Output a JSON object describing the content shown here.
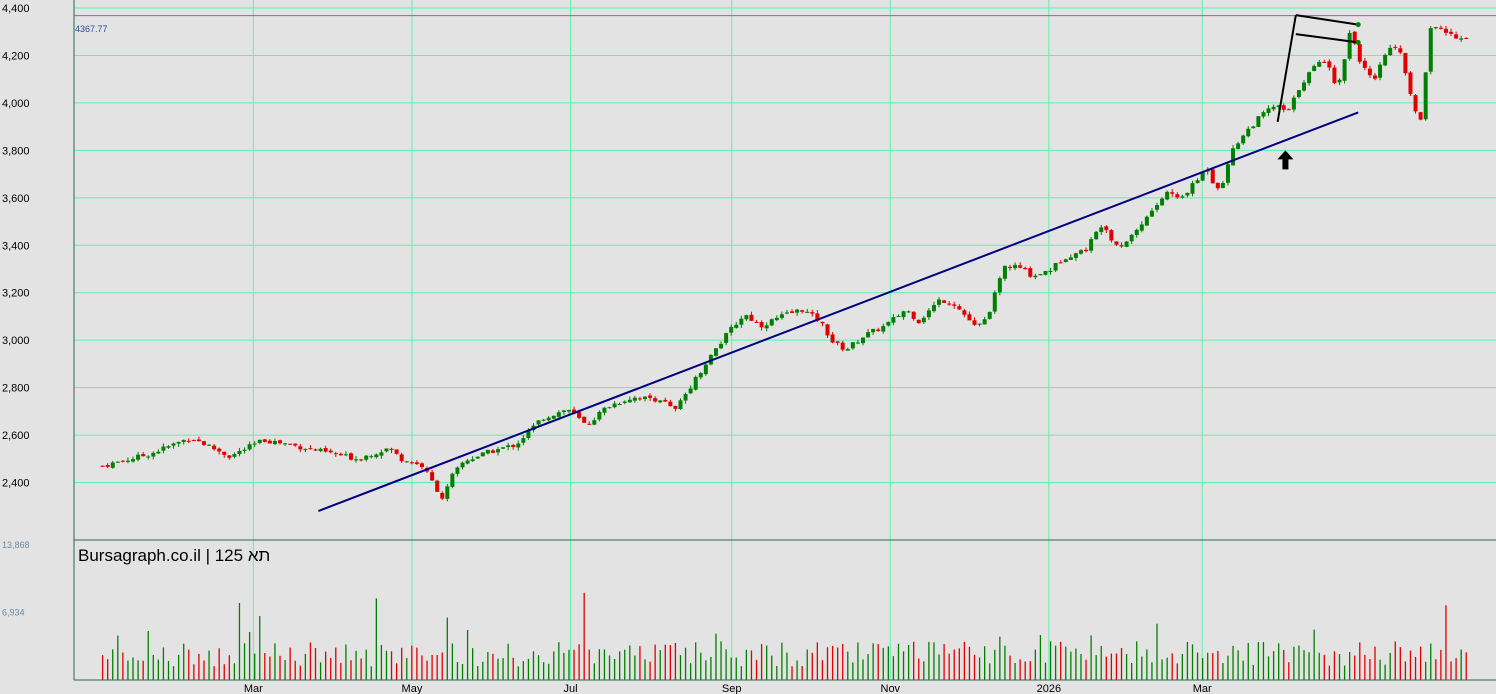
{
  "chart_data": [
    {
      "type": "candlestick",
      "title": "Bursagraph.co.il | תא 125",
      "x_labels": [
        "Mar",
        "May",
        "Jul",
        "Sep",
        "Nov",
        "2026",
        "Mar"
      ],
      "y_ticks": [
        "4,400",
        "4,200",
        "4,000",
        "3,800",
        "3,600",
        "3,400",
        "3,200",
        "3,000",
        "2,800",
        "2,600",
        "2,400"
      ],
      "ylim": [
        2200,
        4400
      ],
      "grid": true,
      "colors": {
        "up": "#008000",
        "down": "#e00000",
        "grid": "#5ef0b0",
        "reference": "#d040d0",
        "trendline": "#000080",
        "pattern": "#000000"
      },
      "reference_line": {
        "value": 4367.77,
        "label": "4367.77"
      },
      "trendline": {
        "from": {
          "date": "2025-03-26",
          "value": 2280
        },
        "to": {
          "date": "2026-04-30",
          "value": 3960
        }
      },
      "pattern_lines": [
        {
          "from": {
            "date": "2026-03-30",
            "value": 3920
          },
          "to": {
            "date": "2026-04-06",
            "value": 4370
          }
        },
        {
          "from": {
            "date": "2026-04-06",
            "value": 4370
          },
          "to": {
            "date": "2026-04-30",
            "value": 4330
          }
        },
        {
          "from": {
            "date": "2026-04-06",
            "value": 4290
          },
          "to": {
            "date": "2026-04-30",
            "value": 4255
          }
        }
      ],
      "arrow": {
        "date": "2026-04-02",
        "value": 3800,
        "direction": "up",
        "icon": "up-arrow-icon"
      },
      "series": [
        {
          "name": "",
          "points": [
            {
              "date": "2025-01-02",
              "value": 2470
            },
            {
              "date": "2025-01-20",
              "value": 2520
            },
            {
              "date": "2025-02-05",
              "value": 2590
            },
            {
              "date": "2025-02-20",
              "value": 2510
            },
            {
              "date": "2025-03-05",
              "value": 2580
            },
            {
              "date": "2025-03-15",
              "value": 2560
            },
            {
              "date": "2025-04-01",
              "value": 2520
            },
            {
              "date": "2025-04-10",
              "value": 2500
            },
            {
              "date": "2025-04-22",
              "value": 2545
            },
            {
              "date": "2025-04-27",
              "value": 2500
            },
            {
              "date": "2025-05-05",
              "value": 2470
            },
            {
              "date": "2025-05-13",
              "value": 2330
            },
            {
              "date": "2025-05-16",
              "value": 2420
            },
            {
              "date": "2025-05-21",
              "value": 2490
            },
            {
              "date": "2025-05-31",
              "value": 2530
            },
            {
              "date": "2025-06-10",
              "value": 2560
            },
            {
              "date": "2025-06-20",
              "value": 2670
            },
            {
              "date": "2025-06-30",
              "value": 2710
            },
            {
              "date": "2025-07-07",
              "value": 2640
            },
            {
              "date": "2025-07-15",
              "value": 2720
            },
            {
              "date": "2025-07-25",
              "value": 2760
            },
            {
              "date": "2025-08-05",
              "value": 2750
            },
            {
              "date": "2025-08-10",
              "value": 2700
            },
            {
              "date": "2025-08-17",
              "value": 2820
            },
            {
              "date": "2025-08-25",
              "value": 2950
            },
            {
              "date": "2025-09-01",
              "value": 3050
            },
            {
              "date": "2025-09-06",
              "value": 3110
            },
            {
              "date": "2025-09-12",
              "value": 3060
            },
            {
              "date": "2025-09-20",
              "value": 3100
            },
            {
              "date": "2025-09-28",
              "value": 3130
            },
            {
              "date": "2025-10-05",
              "value": 3080
            },
            {
              "date": "2025-10-10",
              "value": 2990
            },
            {
              "date": "2025-10-15",
              "value": 2960
            },
            {
              "date": "2025-10-22",
              "value": 3020
            },
            {
              "date": "2025-10-30",
              "value": 3060
            },
            {
              "date": "2025-11-07",
              "value": 3130
            },
            {
              "date": "2025-11-12",
              "value": 3080
            },
            {
              "date": "2025-11-20",
              "value": 3170
            },
            {
              "date": "2025-11-25",
              "value": 3160
            },
            {
              "date": "2025-12-01",
              "value": 3090
            },
            {
              "date": "2025-12-04",
              "value": 3050
            },
            {
              "date": "2025-12-08",
              "value": 3090
            },
            {
              "date": "2025-12-15",
              "value": 3310
            },
            {
              "date": "2025-12-20",
              "value": 3310
            },
            {
              "date": "2025-12-26",
              "value": 3270
            },
            {
              "date": "2026-01-02",
              "value": 3300
            },
            {
              "date": "2026-01-07",
              "value": 3350
            },
            {
              "date": "2026-01-15",
              "value": 3380
            },
            {
              "date": "2026-01-22",
              "value": 3500
            },
            {
              "date": "2026-01-26",
              "value": 3410
            },
            {
              "date": "2026-01-29",
              "value": 3400
            },
            {
              "date": "2026-02-05",
              "value": 3480
            },
            {
              "date": "2026-02-10",
              "value": 3550
            },
            {
              "date": "2026-02-16",
              "value": 3630
            },
            {
              "date": "2026-02-20",
              "value": 3590
            },
            {
              "date": "2026-02-26",
              "value": 3660
            },
            {
              "date": "2026-03-03",
              "value": 3730
            },
            {
              "date": "2026-03-06",
              "value": 3640
            },
            {
              "date": "2026-03-10",
              "value": 3680
            },
            {
              "date": "2026-03-12",
              "value": 3800
            },
            {
              "date": "2026-03-18",
              "value": 3880
            },
            {
              "date": "2026-03-24",
              "value": 3950
            },
            {
              "date": "2026-03-29",
              "value": 3990
            },
            {
              "date": "2026-04-03",
              "value": 3960
            },
            {
              "date": "2026-04-08",
              "value": 4080
            },
            {
              "date": "2026-04-13",
              "value": 4150
            },
            {
              "date": "2026-04-18",
              "value": 4190
            },
            {
              "date": "2026-04-22",
              "value": 4050
            },
            {
              "date": "2026-04-27",
              "value": 4310
            },
            {
              "date": "2026-05-01",
              "value": 4170
            },
            {
              "date": "2026-05-06",
              "value": 4080
            },
            {
              "date": "2026-05-10",
              "value": 4200
            },
            {
              "date": "2026-05-14",
              "value": 4250
            },
            {
              "date": "2026-05-17",
              "value": 4190
            },
            {
              "date": "2026-05-20",
              "value": 4030
            },
            {
              "date": "2026-05-24",
              "value": 3920
            },
            {
              "date": "2026-05-28",
              "value": 4330
            },
            {
              "date": "2026-06-02",
              "value": 4300
            },
            {
              "date": "2026-06-07",
              "value": 4280
            },
            {
              "date": "2026-06-11",
              "value": 4280
            }
          ]
        }
      ]
    },
    {
      "type": "bar",
      "name": "volume",
      "y_ticks": [
        "13,868",
        "6,934"
      ],
      "ylim": [
        0,
        13868
      ],
      "colors": {
        "up": "#008000",
        "down": "#e00000"
      }
    }
  ]
}
